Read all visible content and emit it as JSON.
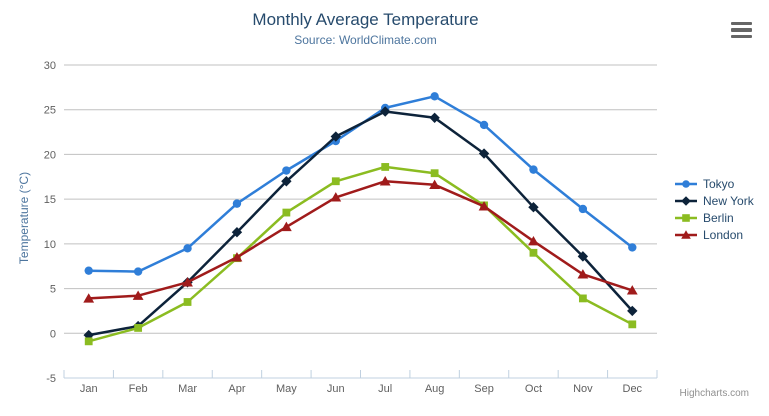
{
  "chart": {
    "title": "Monthly Average Temperature",
    "subtitle": "Source: WorldClimate.com",
    "credits": "Highcharts.com",
    "export_icon": "hamburger-icon"
  },
  "chart_data": {
    "type": "line",
    "title": "Monthly Average Temperature",
    "subtitle": "Source: WorldClimate.com",
    "xlabel": "",
    "ylabel": "Temperature (°C)",
    "categories": [
      "Jan",
      "Feb",
      "Mar",
      "Apr",
      "May",
      "Jun",
      "Jul",
      "Aug",
      "Sep",
      "Oct",
      "Nov",
      "Dec"
    ],
    "yticks": [
      -5,
      0,
      5,
      10,
      15,
      20,
      25,
      30
    ],
    "ylim": [
      -5,
      30
    ],
    "grid": true,
    "legend_position": "right",
    "series": [
      {
        "name": "Tokyo",
        "color": "#2f7ed8",
        "marker": "circle",
        "values": [
          7.0,
          6.9,
          9.5,
          14.5,
          18.2,
          21.5,
          25.2,
          26.5,
          23.3,
          18.3,
          13.9,
          9.6
        ]
      },
      {
        "name": "New York",
        "color": "#0d233a",
        "marker": "diamond",
        "values": [
          -0.2,
          0.8,
          5.7,
          11.3,
          17.0,
          22.0,
          24.8,
          24.1,
          20.1,
          14.1,
          8.6,
          2.5
        ]
      },
      {
        "name": "Berlin",
        "color": "#8bbc21",
        "marker": "square",
        "values": [
          -0.9,
          0.6,
          3.5,
          8.4,
          13.5,
          17.0,
          18.6,
          17.9,
          14.3,
          9.0,
          3.9,
          1.0
        ]
      },
      {
        "name": "London",
        "color": "#a01b1b",
        "marker": "triangle",
        "values": [
          3.9,
          4.2,
          5.7,
          8.5,
          11.9,
          15.2,
          17.0,
          16.6,
          14.2,
          10.3,
          6.6,
          4.8
        ]
      }
    ]
  },
  "styles": {
    "title_color": "#274b6d",
    "subtitle_color": "#4d759e",
    "axis_label_color": "#606060",
    "axis_title_color": "#4d759e",
    "legend_text_color": "#274b6d",
    "grid_color": "#c0c0c0",
    "axis_line_color": "#c0d0e0",
    "credits_color": "#909090",
    "export_icon_color": "#666666"
  }
}
